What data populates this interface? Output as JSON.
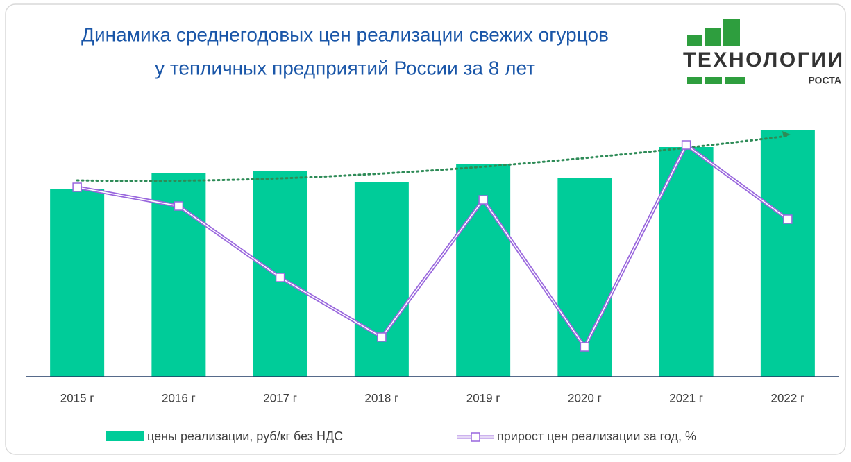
{
  "chart_data": {
    "type": "bar_line",
    "title": [
      "Динамика среднегодовых цен реализации свежих огурцов",
      "у тепличных предприятий России за 8 лет"
    ],
    "logo": {
      "name": "ТЕХНОЛОГИИ",
      "sub": "РОСТА"
    },
    "categories": [
      "2015 г",
      "2016 г",
      "2017 г",
      "2018 г",
      "2019 г",
      "2020 г",
      "2021 г",
      "2022 г"
    ],
    "series": [
      {
        "name": "цены реализации, руб/кг без НДС",
        "color": "#00cc99",
        "values": [
          271,
          294,
          297,
          280,
          307,
          286,
          331,
          356
        ]
      },
      {
        "name": "прирост цен реализации за год, %",
        "color": "#9966dd",
        "axis": "y2",
        "values": [
          273,
          246,
          143,
          57,
          255,
          43,
          334,
          227
        ]
      }
    ],
    "ylim": [
      0,
      400
    ],
    "y2lim": [
      0,
      400
    ],
    "trendline": true
  }
}
